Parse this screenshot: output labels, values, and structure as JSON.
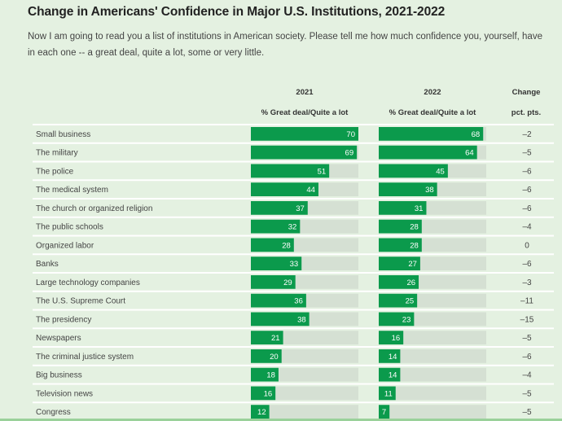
{
  "chart_data": {
    "type": "bar",
    "title": "Change in Americans' Confidence in Major U.S. Institutions, 2021-2022",
    "subtitle": "Now I am going to read you a list of institutions in American society. Please tell me how much confidence you, yourself, have in each one -- a great deal, quite a lot, some or very little.",
    "columns": {
      "y2021": {
        "year": "2021",
        "label": "% Great deal/Quite a lot"
      },
      "y2022": {
        "year": "2022",
        "label": "% Great deal/Quite a lot"
      },
      "change": {
        "title": "Change",
        "label": "pct. pts."
      }
    },
    "xlim": [
      0,
      70
    ],
    "colors": {
      "bar": "#0b9a4c",
      "track": "#d5e0d3",
      "background": "#e4f1e1"
    },
    "categories": [
      "Small business",
      "The military",
      "The police",
      "The medical system",
      "The church or organized religion",
      "The public schools",
      "Organized labor",
      "Banks",
      "Large technology companies",
      "The U.S. Supreme Court",
      "The presidency",
      "Newspapers",
      "The criminal justice system",
      "Big business",
      "Television news",
      "Congress"
    ],
    "series": [
      {
        "name": "2021",
        "values": [
          70,
          69,
          51,
          44,
          37,
          32,
          28,
          33,
          29,
          36,
          38,
          21,
          20,
          18,
          16,
          12
        ]
      },
      {
        "name": "2022",
        "values": [
          68,
          64,
          45,
          38,
          31,
          28,
          28,
          27,
          26,
          25,
          23,
          16,
          14,
          14,
          11,
          7
        ]
      }
    ],
    "change": [
      "–2",
      "–5",
      "–6",
      "–6",
      "–6",
      "–4",
      "0",
      "–6",
      "–3",
      "–11",
      "–15",
      "–5",
      "–6",
      "–4",
      "–5",
      "–5"
    ]
  }
}
